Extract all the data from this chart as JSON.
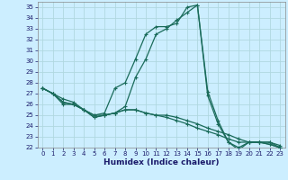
{
  "xlabel": "Humidex (Indice chaleur)",
  "bg_color": "#cceeff",
  "grid_color": "#b0d8e0",
  "line_color": "#1a6b5a",
  "xlim": [
    -0.5,
    23.5
  ],
  "ylim": [
    22,
    35.5
  ],
  "yticks": [
    22,
    23,
    24,
    25,
    26,
    27,
    28,
    29,
    30,
    31,
    32,
    33,
    34,
    35
  ],
  "xticks": [
    0,
    1,
    2,
    3,
    4,
    5,
    6,
    7,
    8,
    9,
    10,
    11,
    12,
    13,
    14,
    15,
    16,
    17,
    18,
    19,
    20,
    21,
    22,
    23
  ],
  "curve1_x": [
    0,
    1,
    2,
    3,
    4,
    5,
    6,
    7,
    8,
    9,
    10,
    11,
    12,
    13,
    14,
    15,
    16,
    17,
    18,
    19,
    20,
    21,
    22,
    23
  ],
  "curve1_y": [
    27.5,
    27.0,
    26.5,
    26.2,
    25.5,
    25.0,
    25.2,
    27.5,
    28.0,
    30.2,
    32.5,
    33.2,
    33.2,
    33.5,
    35.0,
    35.2,
    27.2,
    24.5,
    22.5,
    21.8,
    22.5,
    22.5,
    22.5,
    22.2
  ],
  "curve2_x": [
    0,
    1,
    2,
    3,
    4,
    5,
    6,
    7,
    8,
    9,
    10,
    11,
    12,
    13,
    14,
    15,
    16,
    17,
    18,
    19,
    20,
    21,
    22,
    23
  ],
  "curve2_y": [
    27.5,
    27.0,
    26.0,
    26.0,
    25.5,
    25.0,
    25.0,
    25.2,
    25.8,
    28.5,
    30.2,
    32.5,
    33.0,
    33.8,
    34.5,
    35.2,
    26.8,
    24.2,
    22.5,
    22.0,
    22.5,
    22.5,
    22.5,
    22.0
  ],
  "curve3_x": [
    0,
    1,
    2,
    3,
    4,
    5,
    6,
    7,
    8,
    9,
    10,
    11,
    12,
    13,
    14,
    15,
    16,
    17,
    18,
    19,
    20,
    21,
    22,
    23
  ],
  "curve3_y": [
    27.5,
    27.0,
    26.2,
    26.0,
    25.5,
    24.8,
    25.0,
    25.2,
    25.5,
    25.5,
    25.2,
    25.0,
    25.0,
    24.8,
    24.5,
    24.2,
    23.8,
    23.5,
    23.2,
    22.8,
    22.5,
    22.5,
    22.3,
    22.0
  ],
  "curve4_x": [
    0,
    1,
    2,
    3,
    4,
    5,
    6,
    7,
    8,
    9,
    10,
    11,
    12,
    13,
    14,
    15,
    16,
    17,
    18,
    19,
    20,
    21,
    22,
    23
  ],
  "curve4_y": [
    27.5,
    27.0,
    26.2,
    26.0,
    25.5,
    24.8,
    25.0,
    25.2,
    25.5,
    25.5,
    25.2,
    25.0,
    24.8,
    24.5,
    24.2,
    23.8,
    23.5,
    23.2,
    22.8,
    22.5,
    22.5,
    22.5,
    22.3,
    22.0
  ],
  "xlabel_color": "#1a1a6a",
  "xlabel_fontsize": 6.5,
  "tick_fontsize": 5.0,
  "tick_color": "#1a1a6a"
}
